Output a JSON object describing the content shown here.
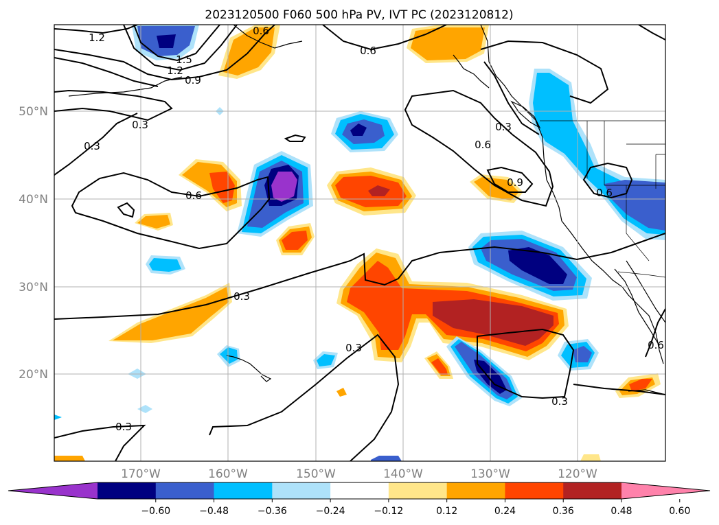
{
  "title": "2023120500 F060 500 hPa PV, IVT PC (2023120812)",
  "map": {
    "lon_labels": [
      "170°W",
      "160°W",
      "150°W",
      "140°W",
      "130°W",
      "120°W"
    ],
    "lat_labels": [
      "50°N",
      "40°N",
      "30°N",
      "20°N"
    ],
    "contour_labels": [
      "1.2",
      "1.5",
      "1.2",
      "0.9",
      "0.6",
      "0.3",
      "0.3",
      "0.6",
      "0.3",
      "0.6",
      "0.9",
      "0.6",
      "0.3",
      "0.3",
      "0.3",
      "0.3",
      "0.6",
      "0.6"
    ]
  },
  "colorbar": {
    "ticks": [
      "−0.60",
      "−0.48",
      "−0.36",
      "−0.24",
      "−0.12",
      "0.12",
      "0.24",
      "0.36",
      "0.48",
      "0.60"
    ],
    "colors": [
      "#9933cc",
      "#000080",
      "#3a5fcd",
      "#00bfff",
      "#aee2fa",
      "#ffffff",
      "#ffe68a",
      "#ffa500",
      "#ff4500",
      "#b22222",
      "#ff82ab"
    ]
  },
  "fill_colors": {
    "neg_light": "#aee2fa",
    "neg_mid": "#00bfff",
    "neg_strong": "#3a5fcd",
    "neg_vstrong": "#000080",
    "neg_ext": "#9933cc",
    "pos_light": "#ffe68a",
    "pos_mid": "#ffa500",
    "pos_strong": "#ff4500",
    "pos_vstrong": "#b22222"
  }
}
